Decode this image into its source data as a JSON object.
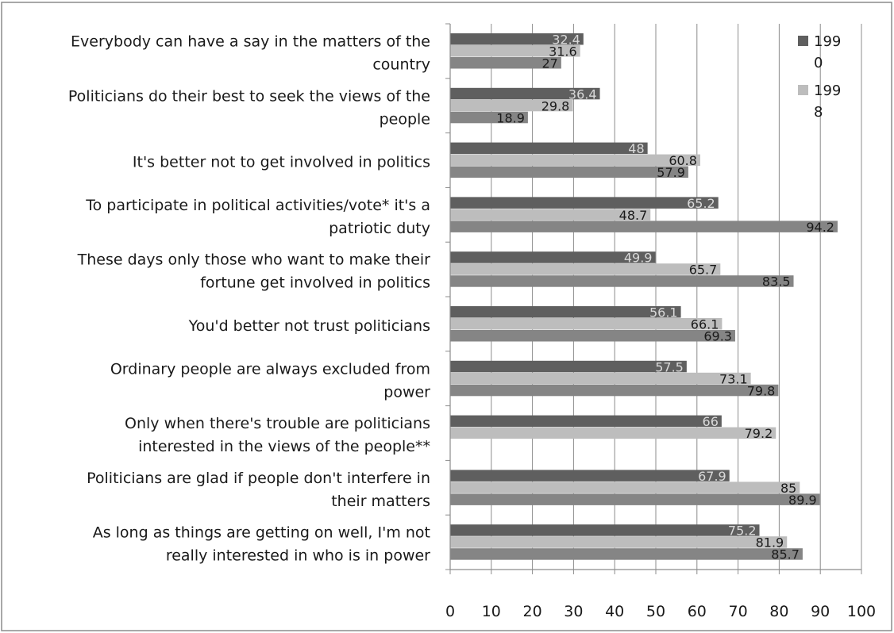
{
  "chart_data": {
    "type": "bar",
    "orientation": "horizontal",
    "title": "",
    "xlabel": "",
    "ylabel": "",
    "xlim": [
      0,
      100
    ],
    "xticks": [
      0,
      10,
      20,
      30,
      40,
      50,
      60,
      70,
      80,
      90,
      100
    ],
    "grid": "vertical major gridlines",
    "legend_position": "top-right",
    "categories": [
      [
        "Everybody can have a say in the matters of the",
        "country"
      ],
      [
        "Politicians do their best to seek the views of the",
        "people"
      ],
      [
        "It's better not to get involved in politics"
      ],
      [
        "To participate in political activities/vote* it's a",
        "patriotic duty"
      ],
      [
        "These days only those who want to make their",
        "fortune get involved in politics"
      ],
      [
        "You'd better not trust politicians"
      ],
      [
        "Ordinary people are always excluded from",
        "power"
      ],
      [
        "Only when there's trouble are politicians",
        "interested in the views of the people**"
      ],
      [
        "Politicians are glad if people don't interfere in",
        "their matters"
      ],
      [
        "As long as things are getting on well, I'm  not",
        "really interested in who is in power"
      ]
    ],
    "series": [
      {
        "name": "1990",
        "legend_lines": [
          "199",
          "0"
        ],
        "color": "#5f5f5f",
        "label_color": "#d9d9d9",
        "values": [
          32.4,
          36.4,
          48,
          65.2,
          49.9,
          56.1,
          57.5,
          66,
          67.9,
          75.2
        ]
      },
      {
        "name": "1998",
        "legend_lines": [
          "199",
          "8"
        ],
        "color": "#bdbdbd",
        "label_color": "#1a1a1a",
        "values": [
          31.6,
          29.8,
          60.8,
          48.7,
          65.7,
          66.1,
          73.1,
          79.2,
          85,
          81.9
        ]
      },
      {
        "name": "",
        "color": "#858585",
        "label_color": "#1a1a1a",
        "values": [
          27,
          18.9,
          57.9,
          94.2,
          83.5,
          69.3,
          79.8,
          null,
          89.9,
          85.7
        ]
      }
    ]
  },
  "colors": {
    "border": "#8c8c8c",
    "gridline": "#8c8c8c",
    "axis": "#8c8c8c"
  }
}
